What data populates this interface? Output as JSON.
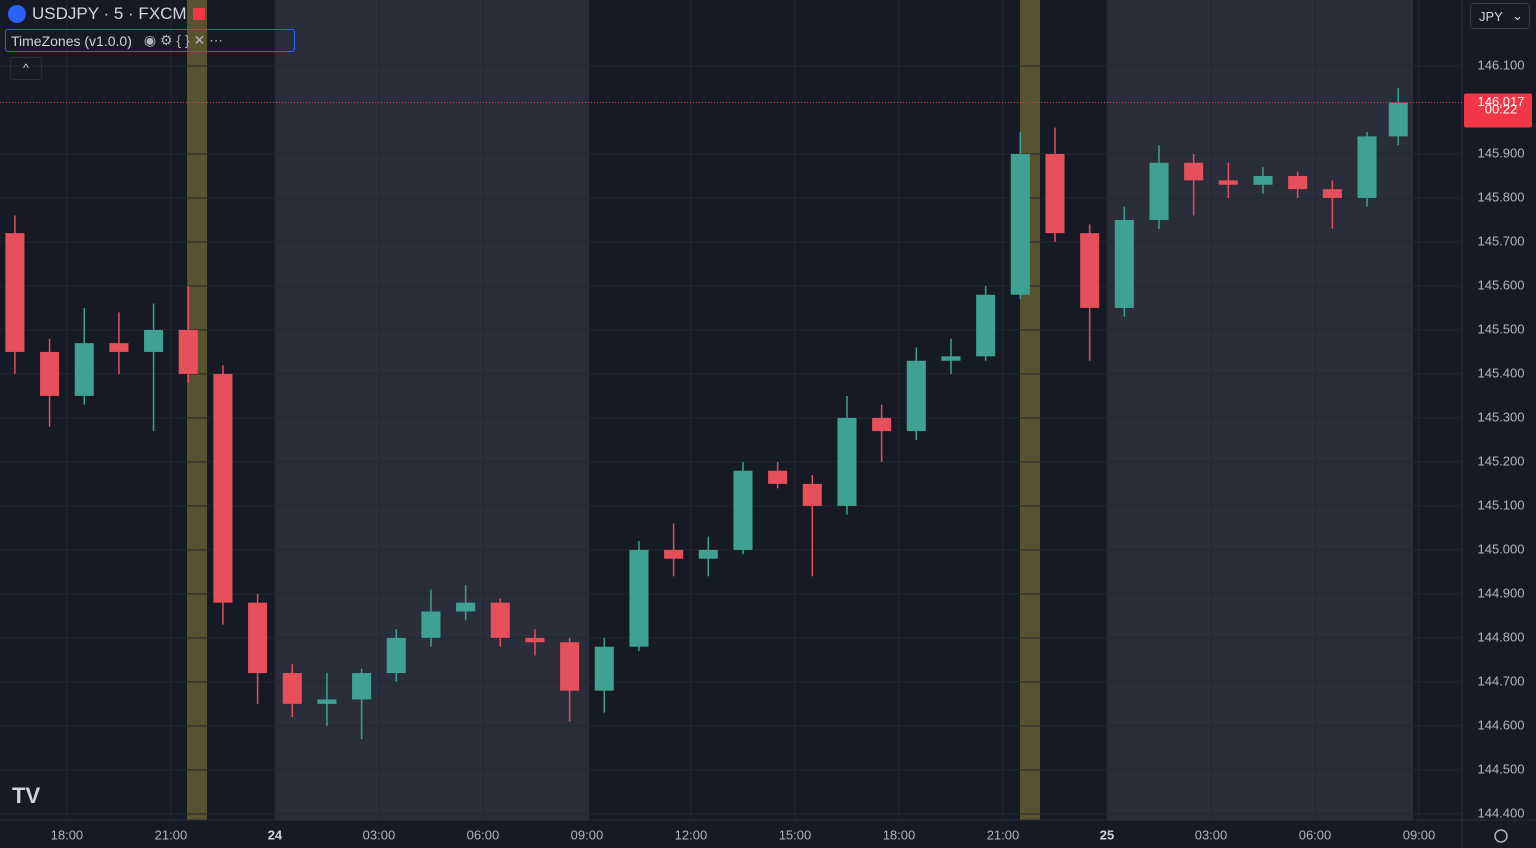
{
  "chart_data": {
    "type": "candlestick",
    "title": "USDJPY · 5 · FXCM",
    "indicator": "TimeZones (v1.0.0)",
    "currency": "JPY",
    "up_color": "#3fa193",
    "down_color": "#e5505b",
    "grid": true,
    "x": [
      -7.5,
      -6.5,
      -5.5,
      -4.5,
      -3.5,
      -2.5,
      -1.5,
      -0.5,
      0.5,
      1.5,
      2.5,
      3.5,
      4.5,
      5.5,
      6.5,
      7.5,
      8.5,
      9.5,
      10.5,
      11.5,
      12.5,
      13.5,
      14.5,
      15.5,
      16.5,
      17.5,
      18.5,
      19.5,
      20.5,
      21.5,
      22.5,
      23.5,
      24.5,
      25.5,
      26.5,
      27.5,
      28.5,
      29.5,
      30.5,
      31.5,
      32.4
    ],
    "open": [
      145.72,
      145.45,
      145.35,
      145.47,
      145.45,
      145.5,
      145.4,
      144.88,
      144.72,
      144.65,
      144.66,
      144.72,
      144.8,
      144.86,
      144.88,
      144.8,
      144.79,
      144.68,
      144.78,
      145.0,
      144.98,
      145.0,
      145.18,
      145.15,
      145.1,
      145.3,
      145.27,
      145.43,
      145.44,
      145.58,
      145.9,
      145.72,
      145.55,
      145.75,
      145.88,
      145.84,
      145.83,
      145.85,
      145.82,
      145.8,
      145.94
    ],
    "high": [
      145.76,
      145.48,
      145.55,
      145.54,
      145.56,
      145.6,
      145.42,
      144.9,
      144.74,
      144.72,
      144.73,
      144.82,
      144.91,
      144.92,
      144.89,
      144.82,
      144.8,
      144.8,
      145.02,
      145.06,
      145.03,
      145.2,
      145.2,
      145.17,
      145.35,
      145.33,
      145.46,
      145.48,
      145.6,
      145.95,
      145.96,
      145.74,
      145.78,
      145.92,
      145.9,
      145.88,
      145.87,
      145.86,
      145.84,
      145.95,
      146.05
    ],
    "low": [
      145.4,
      145.28,
      145.33,
      145.4,
      145.27,
      145.38,
      144.83,
      144.65,
      144.62,
      144.6,
      144.57,
      144.7,
      144.78,
      144.84,
      144.78,
      144.76,
      144.61,
      144.63,
      144.77,
      144.94,
      144.94,
      144.99,
      145.14,
      144.94,
      145.08,
      145.2,
      145.25,
      145.4,
      145.43,
      145.57,
      145.7,
      145.43,
      145.53,
      145.73,
      145.76,
      145.8,
      145.81,
      145.8,
      145.73,
      145.78,
      145.92
    ],
    "close": [
      145.45,
      145.35,
      145.47,
      145.45,
      145.5,
      145.4,
      144.88,
      144.72,
      144.65,
      144.66,
      144.72,
      144.8,
      144.86,
      144.88,
      144.8,
      144.79,
      144.68,
      144.78,
      145.0,
      144.98,
      145.0,
      145.18,
      145.15,
      145.1,
      145.3,
      145.27,
      145.43,
      145.44,
      145.58,
      145.9,
      145.72,
      145.55,
      145.75,
      145.88,
      145.84,
      145.83,
      145.85,
      145.82,
      145.8,
      145.94,
      146.017
    ],
    "last_price": 146.017,
    "countdown": "00:22",
    "xlim": [
      -7.93,
      34.24
    ],
    "ylim": [
      144.386,
      146.25
    ],
    "yticks": [
      {
        "value": 144.4,
        "label": "144.400"
      },
      {
        "value": 144.5,
        "label": "144.500"
      },
      {
        "value": 144.6,
        "label": "144.600"
      },
      {
        "value": 144.7,
        "label": "144.700"
      },
      {
        "value": 144.8,
        "label": "144.800"
      },
      {
        "value": 144.9,
        "label": "144.900"
      },
      {
        "value": 145.0,
        "label": "145.000"
      },
      {
        "value": 145.1,
        "label": "145.100"
      },
      {
        "value": 145.2,
        "label": "145.200"
      },
      {
        "value": 145.3,
        "label": "145.300"
      },
      {
        "value": 145.4,
        "label": "145.400"
      },
      {
        "value": 145.5,
        "label": "145.500"
      },
      {
        "value": 145.6,
        "label": "145.600"
      },
      {
        "value": 145.7,
        "label": "145.700"
      },
      {
        "value": 145.8,
        "label": "145.800"
      },
      {
        "value": 145.9,
        "label": "145.900"
      },
      {
        "value": 146.1,
        "label": "146.100"
      }
    ],
    "xticks": [
      {
        "value": -6,
        "label": "18:00"
      },
      {
        "value": -3,
        "label": "21:00"
      },
      {
        "value": 0,
        "label": "24"
      },
      {
        "value": 3,
        "label": "03:00"
      },
      {
        "value": 6,
        "label": "06:00"
      },
      {
        "value": 9,
        "label": "09:00"
      },
      {
        "value": 12,
        "label": "12:00"
      },
      {
        "value": 15,
        "label": "15:00"
      },
      {
        "value": 18,
        "label": "18:00"
      },
      {
        "value": 21,
        "label": "21:00"
      },
      {
        "value": 24,
        "label": "25"
      },
      {
        "value": 27,
        "label": "03:00"
      },
      {
        "value": 30,
        "label": "06:00"
      },
      {
        "value": 33,
        "label": "09:00"
      }
    ]
  }
}
